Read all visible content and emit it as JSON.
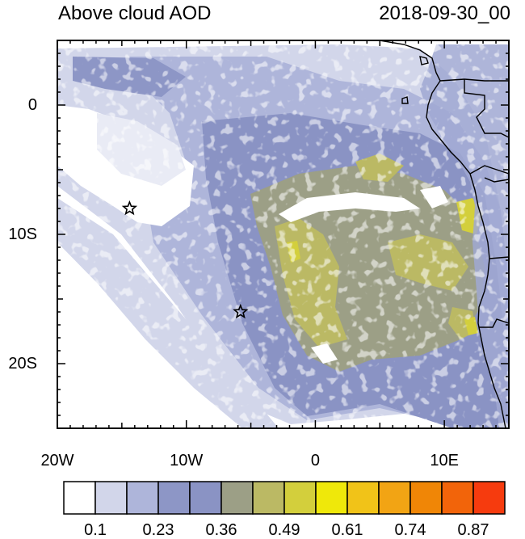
{
  "header": {
    "title": "Above cloud AOD",
    "datetime": "2018-09-30_00"
  },
  "axes": {
    "y_ticks": [
      {
        "label": "0",
        "lat": 0
      },
      {
        "label": "10S",
        "lat": -10
      },
      {
        "label": "20S",
        "lat": -20
      }
    ],
    "x_ticks": [
      {
        "label": "20W",
        "lon": -20
      },
      {
        "label": "10W",
        "lon": -10
      },
      {
        "label": "0",
        "lon": 0
      },
      {
        "label": "10E",
        "lon": 10
      }
    ],
    "lon_range": [
      -20,
      15
    ],
    "lat_range": [
      -25,
      5
    ]
  },
  "markers": [
    {
      "name": "site-marker-north",
      "lon": -14.4,
      "lat": -8.0,
      "symbol": "star"
    },
    {
      "name": "site-marker-south",
      "lon": -5.8,
      "lat": -16.0,
      "symbol": "star"
    }
  ],
  "colorbar": {
    "colors": [
      "#ffffff",
      "#d2d6ea",
      "#aeb5da",
      "#8d96c6",
      "#8a93c4",
      "#9c9f86",
      "#bbb964",
      "#d3cf3c",
      "#efe80a",
      "#f1c318",
      "#f2a414",
      "#f08606",
      "#f2640a",
      "#f63b0e"
    ],
    "labels": [
      {
        "text": "0.1",
        "after_box": 1
      },
      {
        "text": "0.23",
        "after_box": 3
      },
      {
        "text": "0.36",
        "after_box": 5
      },
      {
        "text": "0.49",
        "after_box": 7
      },
      {
        "text": "0.61",
        "after_box": 9
      },
      {
        "text": "0.74",
        "after_box": 11
      },
      {
        "text": "0.87",
        "after_box": 13
      }
    ]
  }
}
